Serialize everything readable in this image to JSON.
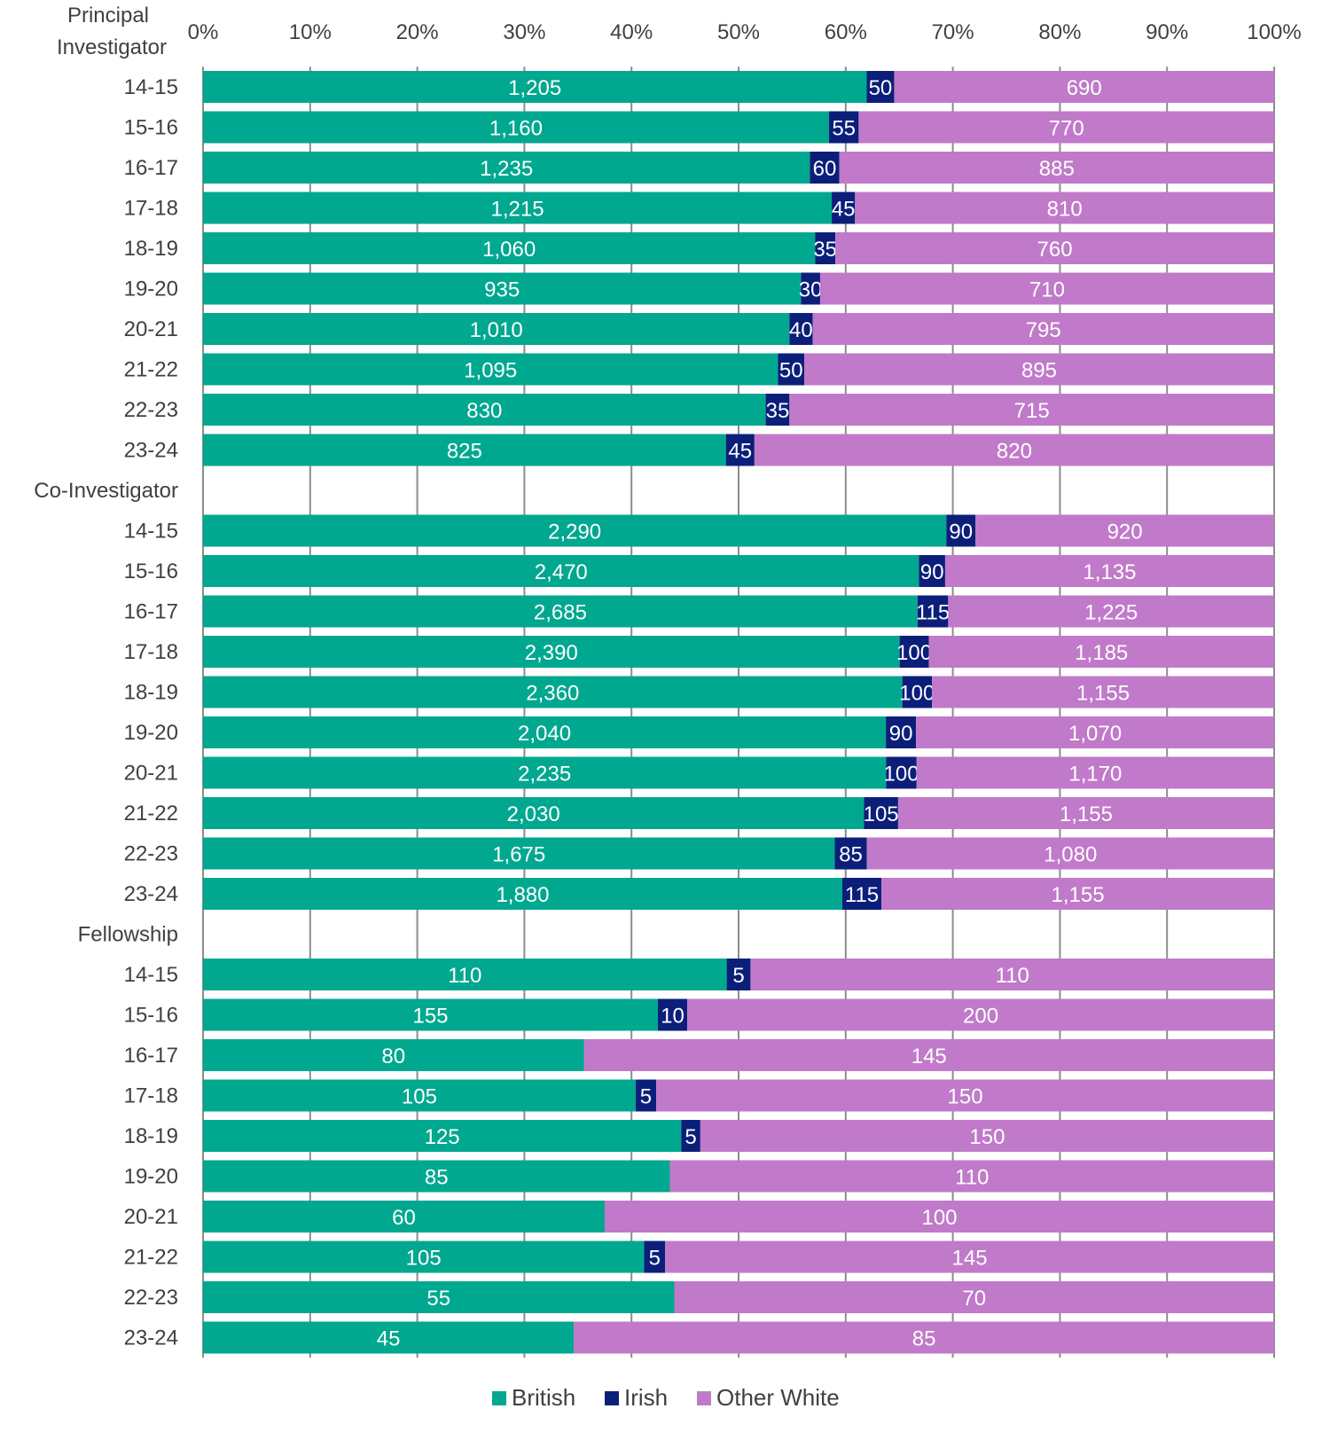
{
  "chart_data": {
    "type": "bar",
    "orientation": "horizontal",
    "stacked": "percent",
    "title": "",
    "xlabel": "",
    "ylabel": "",
    "xlim": [
      0,
      100
    ],
    "x_ticks": [
      "0%",
      "10%",
      "20%",
      "30%",
      "40%",
      "50%",
      "60%",
      "70%",
      "80%",
      "90%",
      "100%"
    ],
    "grid": true,
    "legend_position": "bottom",
    "series": [
      {
        "name": "British",
        "color": "#00a88f"
      },
      {
        "name": "Irish",
        "color": "#0b1f7a"
      },
      {
        "name": "Other White",
        "color": "#c07ac9"
      }
    ],
    "groups": [
      {
        "name": "Principal Investigator",
        "name_lines": [
          "Principal",
          "Investigator"
        ],
        "rows": [
          {
            "label": "14-15",
            "values": [
              1205,
              50,
              690
            ],
            "labels": [
              "1,205",
              "50",
              "690"
            ]
          },
          {
            "label": "15-16",
            "values": [
              1160,
              55,
              770
            ],
            "labels": [
              "1,160",
              "55",
              "770"
            ]
          },
          {
            "label": "16-17",
            "values": [
              1235,
              60,
              885
            ],
            "labels": [
              "1,235",
              "60",
              "885"
            ]
          },
          {
            "label": "17-18",
            "values": [
              1215,
              45,
              810
            ],
            "labels": [
              "1,215",
              "45",
              "810"
            ]
          },
          {
            "label": "18-19",
            "values": [
              1060,
              35,
              760
            ],
            "labels": [
              "1,060",
              "35",
              "760"
            ]
          },
          {
            "label": "19-20",
            "values": [
              935,
              30,
              710
            ],
            "labels": [
              "935",
              "30",
              "710"
            ]
          },
          {
            "label": "20-21",
            "values": [
              1010,
              40,
              795
            ],
            "labels": [
              "1,010",
              "40",
              "795"
            ]
          },
          {
            "label": "21-22",
            "values": [
              1095,
              50,
              895
            ],
            "labels": [
              "1,095",
              "50",
              "895"
            ]
          },
          {
            "label": "22-23",
            "values": [
              830,
              35,
              715
            ],
            "labels": [
              "830",
              "35",
              "715"
            ]
          },
          {
            "label": "23-24",
            "values": [
              825,
              45,
              820
            ],
            "labels": [
              "825",
              "45",
              "820"
            ]
          }
        ]
      },
      {
        "name": "Co-Investigator",
        "name_lines": [
          "Co-Investigator"
        ],
        "rows": [
          {
            "label": "14-15",
            "values": [
              2290,
              90,
              920
            ],
            "labels": [
              "2,290",
              "90",
              "920"
            ]
          },
          {
            "label": "15-16",
            "values": [
              2470,
              90,
              1135
            ],
            "labels": [
              "2,470",
              "90",
              "1,135"
            ]
          },
          {
            "label": "16-17",
            "values": [
              2685,
              115,
              1225
            ],
            "labels": [
              "2,685",
              "115",
              "1,225"
            ]
          },
          {
            "label": "17-18",
            "values": [
              2390,
              100,
              1185
            ],
            "labels": [
              "2,390",
              "100",
              "1,185"
            ]
          },
          {
            "label": "18-19",
            "values": [
              2360,
              100,
              1155
            ],
            "labels": [
              "2,360",
              "100",
              "1,155"
            ]
          },
          {
            "label": "19-20",
            "values": [
              2040,
              90,
              1070
            ],
            "labels": [
              "2,040",
              "90",
              "1,070"
            ]
          },
          {
            "label": "20-21",
            "values": [
              2235,
              100,
              1170
            ],
            "labels": [
              "2,235",
              "100",
              "1,170"
            ]
          },
          {
            "label": "21-22",
            "values": [
              2030,
              105,
              1155
            ],
            "labels": [
              "2,030",
              "105",
              "1,155"
            ]
          },
          {
            "label": "22-23",
            "values": [
              1675,
              85,
              1080
            ],
            "labels": [
              "1,675",
              "85",
              "1,080"
            ]
          },
          {
            "label": "23-24",
            "values": [
              1880,
              115,
              1155
            ],
            "labels": [
              "1,880",
              "115",
              "1,155"
            ]
          }
        ]
      },
      {
        "name": "Fellowship",
        "name_lines": [
          "Fellowship"
        ],
        "rows": [
          {
            "label": "14-15",
            "values": [
              110,
              5,
              110
            ],
            "labels": [
              "110",
              "5",
              "110"
            ]
          },
          {
            "label": "15-16",
            "values": [
              155,
              10,
              200
            ],
            "labels": [
              "155",
              "10",
              "200"
            ]
          },
          {
            "label": "16-17",
            "values": [
              80,
              0,
              145
            ],
            "labels": [
              "80",
              "",
              "145"
            ]
          },
          {
            "label": "17-18",
            "values": [
              105,
              5,
              150
            ],
            "labels": [
              "105",
              "5",
              "150"
            ]
          },
          {
            "label": "18-19",
            "values": [
              125,
              5,
              150
            ],
            "labels": [
              "125",
              "5",
              "150"
            ]
          },
          {
            "label": "19-20",
            "values": [
              85,
              0,
              110
            ],
            "labels": [
              "85",
              "",
              "110"
            ]
          },
          {
            "label": "20-21",
            "values": [
              60,
              0,
              100
            ],
            "labels": [
              "60",
              "",
              "100"
            ]
          },
          {
            "label": "21-22",
            "values": [
              105,
              5,
              145
            ],
            "labels": [
              "105",
              "5",
              "145"
            ]
          },
          {
            "label": "22-23",
            "values": [
              55,
              0,
              70
            ],
            "labels": [
              "55",
              "",
              "70"
            ]
          },
          {
            "label": "23-24",
            "values": [
              45,
              0,
              85
            ],
            "labels": [
              "45",
              "",
              "85"
            ]
          }
        ]
      }
    ]
  }
}
